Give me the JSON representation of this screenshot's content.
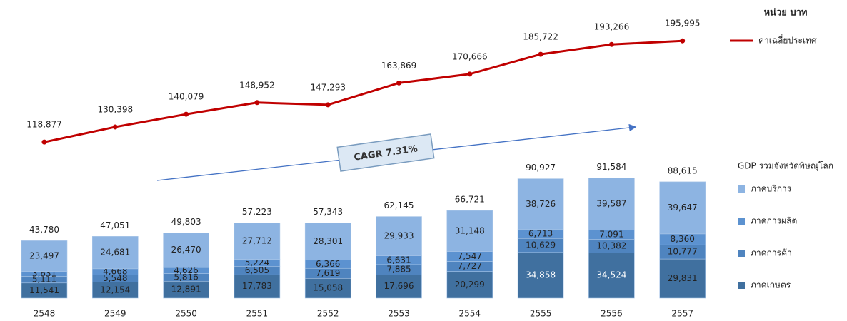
{
  "chart_data": {
    "type": "bar",
    "unit_label": "หน่วย บาท",
    "legend_title": "GDP รวมจังหวัดพิษณุโลก",
    "annotation": "CAGR 7.31%",
    "categories": [
      "2548",
      "2549",
      "2550",
      "2551",
      "2552",
      "2553",
      "2554",
      "2555",
      "2556",
      "2557"
    ],
    "ylim": [
      0,
      220000
    ],
    "series": [
      {
        "name": "ภาคเกษตร",
        "type": "bar",
        "color": "#40709f",
        "values": [
          11541,
          12154,
          12891,
          17783,
          15058,
          17696,
          20299,
          34858,
          34524,
          29831
        ],
        "value_labels": [
          "11,541",
          "12,154",
          "12,891",
          "17,783",
          "15,058",
          "17,696",
          "20,299",
          "34,858",
          "34,524",
          "29,831"
        ]
      },
      {
        "name": "ภาคการค้า",
        "type": "bar",
        "color": "#4f84bf",
        "values": [
          5111,
          5548,
          5816,
          6505,
          7619,
          7885,
          7727,
          10629,
          10382,
          10777
        ],
        "value_labels": [
          "5,111",
          "5,548",
          "5,816",
          "6,505",
          "7,619",
          "7,885",
          "7,727",
          "10,629",
          "10,382",
          "10,777"
        ]
      },
      {
        "name": "ภาคการผลิต",
        "type": "bar",
        "color": "#5c92d0",
        "values": [
          3631,
          4668,
          4626,
          5224,
          6366,
          6631,
          7547,
          6713,
          7091,
          8360
        ],
        "value_labels": [
          "3,631",
          "4,668",
          "4,626",
          "5,224",
          "6,366",
          "6,631",
          "7,547",
          "6,713",
          "7,091",
          "8,360"
        ]
      },
      {
        "name": "ภาคบริการ",
        "type": "bar",
        "color": "#8db4e2",
        "values": [
          23497,
          24681,
          26470,
          27712,
          28301,
          29933,
          31148,
          38726,
          39587,
          39647
        ],
        "value_labels": [
          "23,497",
          "24,681",
          "26,470",
          "27,712",
          "28,301",
          "29,933",
          "31,148",
          "38,726",
          "39,587",
          "39,647"
        ]
      },
      {
        "name": "ค่าเฉลี่ยประเทศ",
        "type": "line",
        "color": "#c00000",
        "values": [
          118877,
          130398,
          140079,
          148952,
          147293,
          163869,
          170666,
          185722,
          193266,
          195995
        ],
        "value_labels": [
          "118,877",
          "130,398",
          "140,079",
          "148,952",
          "147,293",
          "163,869",
          "170,666",
          "185,722",
          "193,266",
          "195,995"
        ]
      }
    ],
    "totals": [
      43780,
      47051,
      49803,
      57223,
      57343,
      62145,
      66721,
      90927,
      91584,
      88615
    ],
    "total_labels": [
      "43,780",
      "47,051",
      "49,803",
      "57,223",
      "57,343",
      "62,145",
      "66,721",
      "90,927",
      "91,584",
      "88,615"
    ]
  }
}
